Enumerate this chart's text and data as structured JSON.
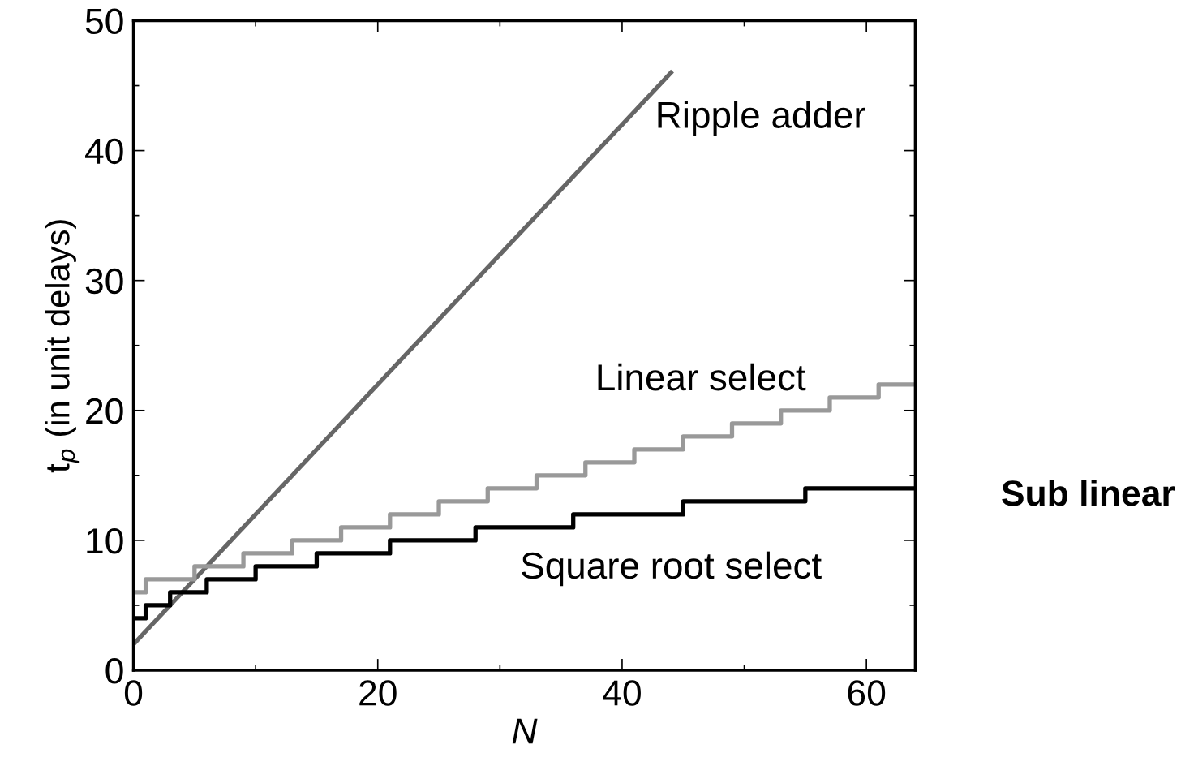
{
  "chart_data": {
    "type": "line",
    "xlabel": "N",
    "ylabel": "t$_{p}$ (in unit delays)",
    "xlim": [
      0,
      64
    ],
    "ylim": [
      0,
      50
    ],
    "xticks": [
      0,
      {
        "value": 10,
        "label": null
      },
      20,
      {
        "value": 30,
        "label": null
      },
      40,
      {
        "value": 50,
        "label": null
      },
      60
    ],
    "yticks": [
      0,
      {
        "value": 5,
        "label": null
      },
      10,
      {
        "value": 15,
        "label": null
      },
      20,
      {
        "value": 25,
        "label": null
      },
      30,
      {
        "value": 35,
        "label": null
      },
      40,
      {
        "value": 45,
        "label": null
      },
      50
    ],
    "grid": false,
    "legend": false,
    "marker": "none",
    "line_style": "solid",
    "series": [
      {
        "name": "Ripple adder",
        "color": "#666666",
        "x": [
          0,
          44
        ],
        "values": [
          2,
          46
        ]
      },
      {
        "name": "Linear select",
        "type": "step",
        "color": "#999999",
        "x": [
          0,
          1,
          5,
          9,
          13,
          17,
          21,
          25,
          29,
          33,
          37,
          41,
          45,
          49,
          53,
          57,
          61,
          64
        ],
        "values": [
          6,
          7,
          8,
          9,
          10,
          11,
          12,
          13,
          14,
          15,
          16,
          17,
          18,
          19,
          20,
          21,
          22,
          22
        ]
      },
      {
        "name": "Square root select",
        "type": "step",
        "color": "#000000",
        "x": [
          0,
          1,
          3,
          6,
          10,
          15,
          21,
          28,
          36,
          45,
          55,
          64
        ],
        "values": [
          4,
          5,
          6,
          7,
          8,
          9,
          10,
          11,
          12,
          13,
          14,
          14
        ]
      }
    ],
    "annotations": [
      "Sub linear"
    ]
  }
}
